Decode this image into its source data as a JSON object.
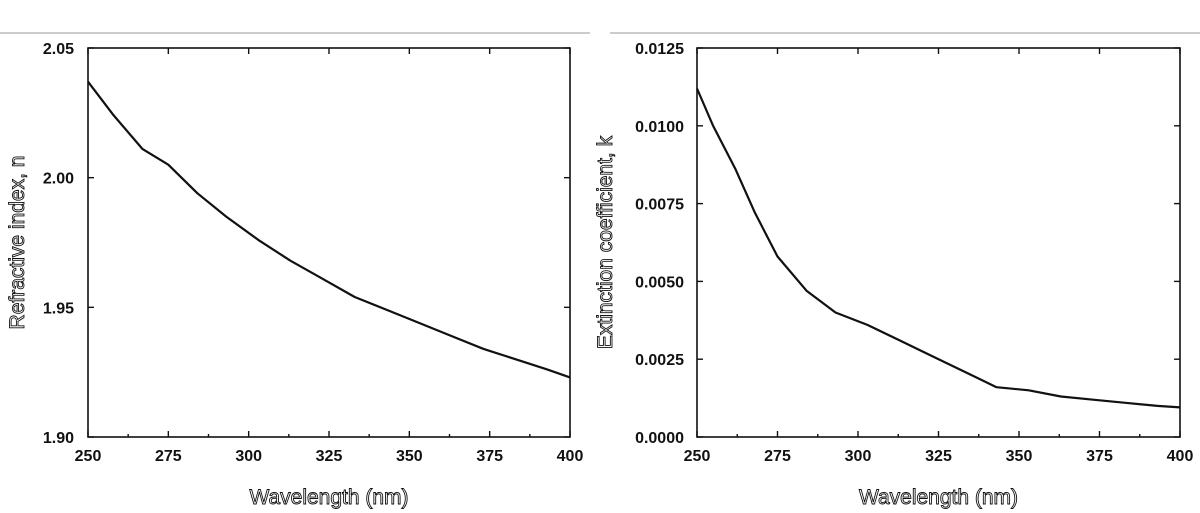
{
  "chart_data": [
    {
      "type": "line",
      "xlabel": "Wavelength (nm)",
      "ylabel": "Refractive index, n",
      "xlim": [
        250,
        400
      ],
      "ylim": [
        1.9,
        2.05
      ],
      "xticks": [
        250,
        275,
        300,
        325,
        350,
        375,
        400
      ],
      "yticks": [
        "1.90",
        "1.95",
        "2.00",
        "2.05"
      ],
      "grid": false,
      "series": [
        {
          "x": [
            250,
            258,
            267,
            275,
            284,
            293,
            303,
            313,
            323,
            333,
            343,
            353,
            363,
            373,
            383,
            393,
            400
          ],
          "y": [
            2.037,
            2.024,
            2.011,
            2.005,
            1.994,
            1.985,
            1.976,
            1.968,
            1.961,
            1.954,
            1.949,
            1.944,
            1.939,
            1.934,
            1.93,
            1.926,
            1.923
          ]
        }
      ]
    },
    {
      "type": "line",
      "xlabel": "Wavelength (nm)",
      "ylabel": "Extinction coefficient, k",
      "xlim": [
        250,
        400
      ],
      "ylim": [
        0.0,
        0.0125
      ],
      "xticks": [
        250,
        275,
        300,
        325,
        350,
        375,
        400
      ],
      "yticks": [
        "0.0000",
        "0.0025",
        "0.0050",
        "0.0075",
        "0.0100",
        "0.0125"
      ],
      "grid": false,
      "series": [
        {
          "x": [
            250,
            255,
            262,
            268,
            275,
            284,
            293,
            303,
            313,
            323,
            333,
            343,
            353,
            363,
            373,
            383,
            393,
            400
          ],
          "y": [
            0.0112,
            0.01,
            0.0086,
            0.0072,
            0.0058,
            0.0047,
            0.004,
            0.0036,
            0.0031,
            0.0026,
            0.0021,
            0.0016,
            0.0015,
            0.0013,
            0.0012,
            0.0011,
            0.001,
            0.00095
          ]
        }
      ]
    }
  ]
}
